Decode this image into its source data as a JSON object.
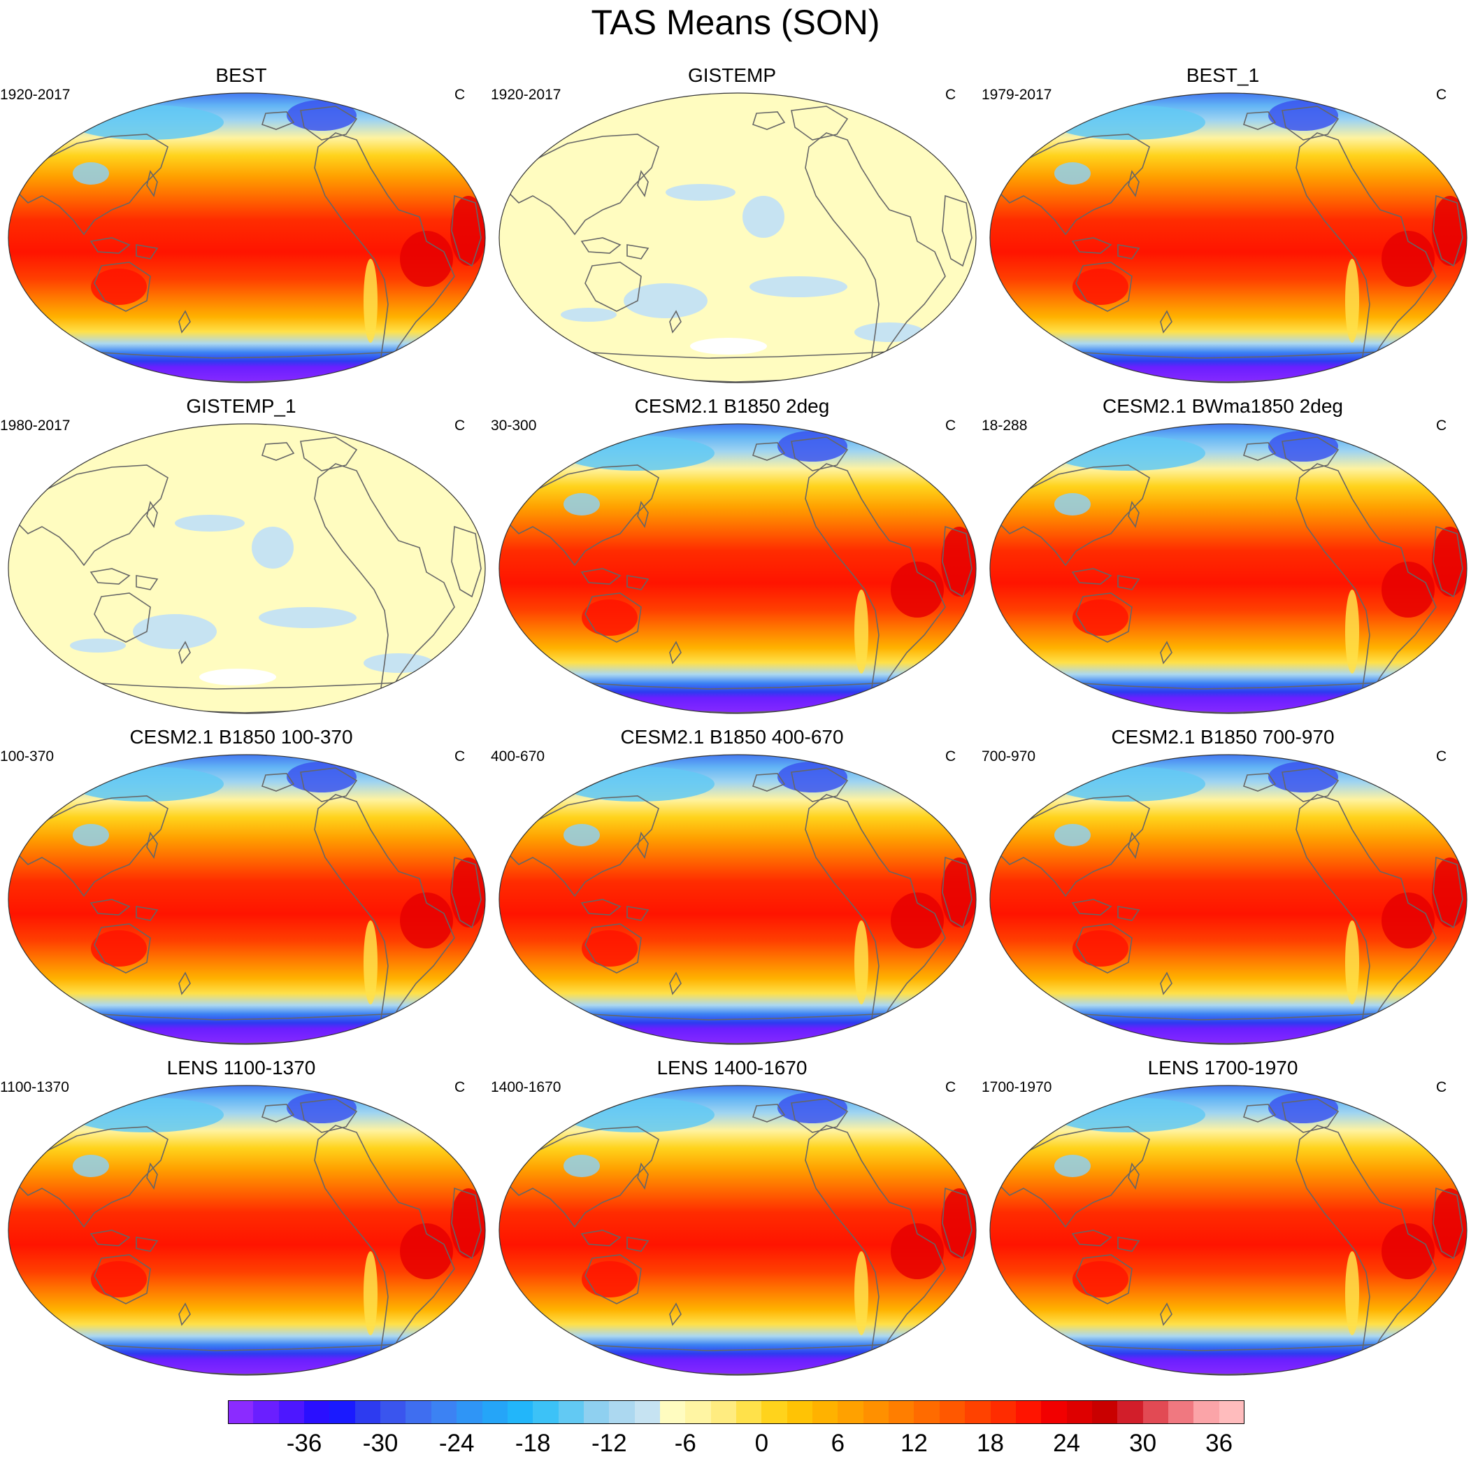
{
  "figure": {
    "title": "TAS Means (SON)"
  },
  "panels": [
    {
      "title": "BEST",
      "left_label": "1920-2017",
      "right_label": "C",
      "style": "full"
    },
    {
      "title": "GISTEMP",
      "left_label": "1920-2017",
      "right_label": "C",
      "style": "sparse"
    },
    {
      "title": "BEST_1",
      "left_label": "1979-2017",
      "right_label": "C",
      "style": "full"
    },
    {
      "title": "GISTEMP_1",
      "left_label": "1980-2017",
      "right_label": "C",
      "style": "sparse"
    },
    {
      "title": "CESM2.1 B1850 2deg",
      "left_label": "30-300",
      "right_label": "C",
      "style": "full"
    },
    {
      "title": "CESM2.1 BWma1850 2deg",
      "left_label": "18-288",
      "right_label": "C",
      "style": "full"
    },
    {
      "title": "CESM2.1 B1850 100-370",
      "left_label": "100-370",
      "right_label": "C",
      "style": "full"
    },
    {
      "title": "CESM2.1 B1850 400-670",
      "left_label": "400-670",
      "right_label": "C",
      "style": "full"
    },
    {
      "title": "CESM2.1 B1850 700-970",
      "left_label": "700-970",
      "right_label": "C",
      "style": "full"
    },
    {
      "title": "LENS 1100-1370",
      "left_label": "1100-1370",
      "right_label": "C",
      "style": "full"
    },
    {
      "title": "LENS 1400-1670",
      "left_label": "1400-1670",
      "right_label": "C",
      "style": "full"
    },
    {
      "title": "LENS 1700-1970",
      "left_label": "1700-1970",
      "right_label": "C",
      "style": "full"
    }
  ],
  "colorbar": {
    "labels": [
      "-36",
      "-30",
      "-24",
      "-18",
      "-12",
      "-6",
      "0",
      "6",
      "12",
      "18",
      "24",
      "30",
      "36"
    ],
    "colors": [
      "#8b2bff",
      "#6a1fff",
      "#4d17ff",
      "#2a0fff",
      "#1a1aff",
      "#2d3bf0",
      "#3a55ee",
      "#3f6ef0",
      "#3c82f3",
      "#2f95f6",
      "#25a5f8",
      "#22b6fa",
      "#3cc2f7",
      "#62c9f3",
      "#8fd0f0",
      "#acd8f0",
      "#c6e3f2",
      "#fffcc0",
      "#fff5a3",
      "#ffec80",
      "#ffe14a",
      "#ffd31c",
      "#ffc305",
      "#ffb200",
      "#ffa100",
      "#ff9000",
      "#ff7e00",
      "#ff6b00",
      "#ff5800",
      "#ff4200",
      "#ff2c00",
      "#ff1400",
      "#f20000",
      "#de0000",
      "#c90000",
      "#d21e2a",
      "#e24a54",
      "#f07880",
      "#fba4a8",
      "#ffbcbd"
    ]
  }
}
